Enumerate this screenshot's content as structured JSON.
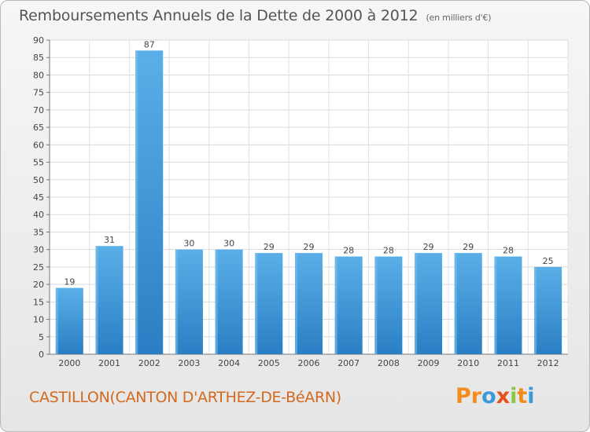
{
  "title": "Remboursements Annuels de la Dette de 2000 à 2012",
  "unit": "(en milliers d'€)",
  "location": "CASTILLON(CANTON D'ARTHEZ-DE-BéARN)",
  "brand": {
    "letters": [
      "P",
      "r",
      "o",
      "x",
      "i",
      "t",
      "i"
    ],
    "colors": [
      "#f28c1c",
      "#f28c1c",
      "#3a9ad9",
      "#e84e1b",
      "#8dc63f",
      "#f28c1c",
      "#3a9ad9"
    ]
  },
  "chart_data": {
    "type": "bar",
    "categories": [
      "2000",
      "2001",
      "2002",
      "2003",
      "2004",
      "2005",
      "2006",
      "2007",
      "2008",
      "2009",
      "2010",
      "2011",
      "2012"
    ],
    "values": [
      19,
      31,
      87,
      30,
      30,
      29,
      29,
      28,
      28,
      29,
      29,
      28,
      25
    ],
    "data_labels": [
      "19",
      "31",
      "87",
      "30",
      "30",
      "29",
      "29",
      "28",
      "28",
      "29",
      "29",
      "28",
      "25"
    ],
    "y_ticks": [
      0,
      5,
      10,
      15,
      20,
      25,
      30,
      35,
      40,
      45,
      50,
      55,
      60,
      65,
      70,
      75,
      80,
      85,
      90
    ],
    "ylim": [
      0,
      90
    ],
    "grid": true,
    "bar_color": "#3d8fd6"
  }
}
